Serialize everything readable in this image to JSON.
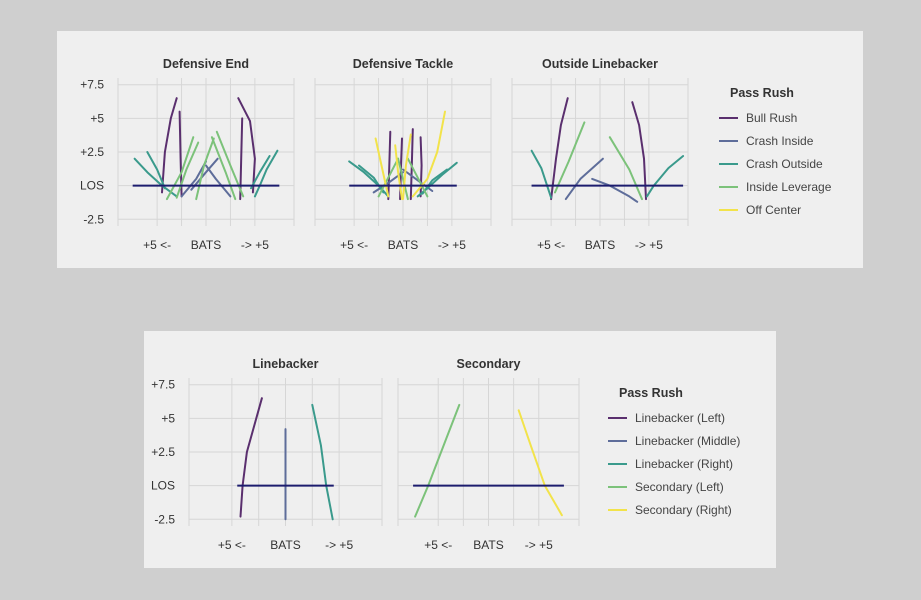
{
  "colors": {
    "los_line": "#1c1c6e",
    "grid": "#d6d6d6",
    "bull_rush": "#5a2f6e",
    "crash_inside": "#5e6d9a",
    "crash_outside": "#3a9a8c",
    "inside_leverage": "#7cc27a",
    "off_center": "#f2e34a"
  },
  "chart_data": [
    {
      "type": "line",
      "facet": "Defensive End",
      "title": "Defensive End",
      "x_ticks": [
        "+5 <-",
        "BATS",
        "-> +5"
      ],
      "y_ticks": [
        "+7.5",
        "+5",
        "+2.5",
        "LOS",
        "-2.5"
      ],
      "x_range": [
        -9,
        9
      ],
      "y_range": [
        -3,
        8
      ],
      "los_segment": [
        -7.5,
        7.5
      ],
      "series": [
        {
          "name": "Bull Rush",
          "color": "#5a2f6e",
          "lines": [
            [
              [
                -4.5,
                -0.5
              ],
              [
                -4.2,
                2.5
              ],
              [
                -3.6,
                5
              ],
              [
                -3,
                6.5
              ]
            ],
            [
              [
                -2.5,
                -0.8
              ],
              [
                -2.6,
                2
              ],
              [
                -2.7,
                5.5
              ]
            ],
            [
              [
                3.5,
                -1
              ],
              [
                3.6,
                2
              ],
              [
                3.7,
                5
              ]
            ],
            [
              [
                4.8,
                -0.5
              ],
              [
                5,
                2
              ],
              [
                4.5,
                4.8
              ],
              [
                3.3,
                6.5
              ]
            ]
          ]
        },
        {
          "name": "Crash Inside",
          "color": "#5e6d9a",
          "lines": [
            [
              [
                -2.5,
                -0.8
              ],
              [
                -1,
                0.5
              ],
              [
                0,
                1.8
              ]
            ],
            [
              [
                2.5,
                -0.8
              ],
              [
                1,
                0.5
              ],
              [
                0,
                1.5
              ]
            ],
            [
              [
                -1.5,
                -0.3
              ],
              [
                0,
                1
              ],
              [
                1.2,
                2
              ]
            ]
          ]
        },
        {
          "name": "Crash Outside",
          "color": "#3a9a8c",
          "lines": [
            [
              [
                -7.3,
                2
              ],
              [
                -6,
                1
              ],
              [
                -4.5,
                0
              ],
              [
                -3,
                -0.8
              ]
            ],
            [
              [
                -6,
                2.5
              ],
              [
                -5,
                1.2
              ],
              [
                -4.2,
                -0.2
              ]
            ],
            [
              [
                7.3,
                2.6
              ],
              [
                6.2,
                1.2
              ],
              [
                5.5,
                0
              ],
              [
                5,
                -0.8
              ]
            ],
            [
              [
                6.5,
                2.2
              ],
              [
                5.5,
                1
              ],
              [
                4.6,
                -0.2
              ]
            ]
          ]
        },
        {
          "name": "Inside Leverage",
          "color": "#7cc27a",
          "lines": [
            [
              [
                -4,
                -1
              ],
              [
                -2.5,
                1
              ],
              [
                -1.3,
                3.6
              ]
            ],
            [
              [
                -3,
                -0.9
              ],
              [
                -2,
                1.2
              ],
              [
                -0.8,
                3.2
              ]
            ],
            [
              [
                3.8,
                -0.8
              ],
              [
                2.5,
                1.5
              ],
              [
                1.1,
                4
              ]
            ],
            [
              [
                3,
                -1
              ],
              [
                2,
                1
              ],
              [
                0.6,
                3.6
              ]
            ],
            [
              [
                -1,
                -1
              ],
              [
                -0.2,
                1.5
              ],
              [
                0.8,
                3.5
              ]
            ]
          ]
        },
        {
          "name": "Off Center",
          "color": "#f2e34a",
          "lines": []
        }
      ]
    },
    {
      "type": "line",
      "facet": "Defensive Tackle",
      "title": "Defensive Tackle",
      "x_ticks": [
        "+5 <-",
        "BATS",
        "-> +5"
      ],
      "y_ticks": [
        "+7.5",
        "+5",
        "+2.5",
        "LOS",
        "-2.5"
      ],
      "x_range": [
        -9,
        9
      ],
      "y_range": [
        -3,
        8
      ],
      "los_segment": [
        -5.5,
        5.5
      ],
      "series": [
        {
          "name": "Bull Rush",
          "color": "#5a2f6e",
          "lines": [
            [
              [
                -1.5,
                -1
              ],
              [
                -1.4,
                1.5
              ],
              [
                -1.3,
                4
              ]
            ],
            [
              [
                -0.3,
                -1
              ],
              [
                -0.2,
                1.5
              ],
              [
                -0.1,
                3.5
              ]
            ],
            [
              [
                0.8,
                -1
              ],
              [
                0.9,
                1.5
              ],
              [
                1,
                4.2
              ]
            ],
            [
              [
                1.8,
                -0.8
              ],
              [
                1.9,
                1.5
              ],
              [
                1.8,
                3.6
              ]
            ]
          ]
        },
        {
          "name": "Crash Inside",
          "color": "#5e6d9a",
          "lines": [
            [
              [
                -3,
                -0.5
              ],
              [
                -1.5,
                0.2
              ],
              [
                0,
                1
              ]
            ],
            [
              [
                3,
                -0.4
              ],
              [
                1.5,
                0.4
              ],
              [
                0,
                1.2
              ]
            ]
          ]
        },
        {
          "name": "Crash Outside",
          "color": "#3a9a8c",
          "lines": [
            [
              [
                -5.5,
                1.8
              ],
              [
                -4,
                1
              ],
              [
                -2.5,
                0
              ],
              [
                -1.5,
                -0.8
              ]
            ],
            [
              [
                -4.5,
                1.5
              ],
              [
                -3,
                0.6
              ],
              [
                -2,
                -0.5
              ]
            ],
            [
              [
                5.5,
                1.7
              ],
              [
                4,
                0.8
              ],
              [
                2.5,
                -0.2
              ],
              [
                1.5,
                -0.8
              ]
            ],
            [
              [
                4.5,
                1.2
              ],
              [
                3,
                0.4
              ],
              [
                2,
                -0.6
              ]
            ]
          ]
        },
        {
          "name": "Inside Leverage",
          "color": "#7cc27a",
          "lines": [
            [
              [
                -2.5,
                -0.8
              ],
              [
                -1.5,
                0.6
              ],
              [
                -0.5,
                2
              ]
            ],
            [
              [
                2.5,
                -0.8
              ],
              [
                1.5,
                0.6
              ],
              [
                0.5,
                2
              ]
            ],
            [
              [
                0.5,
                -1
              ],
              [
                0,
                0.5
              ],
              [
                -0.5,
                2
              ]
            ]
          ]
        },
        {
          "name": "Off Center",
          "color": "#f2e34a",
          "lines": [
            [
              [
                -2.8,
                3.5
              ],
              [
                -2.2,
                1.5
              ],
              [
                -1.5,
                -0.8
              ]
            ],
            [
              [
                -0.8,
                3
              ],
              [
                -0.5,
                1
              ],
              [
                -0.1,
                -1
              ]
            ],
            [
              [
                0.8,
                3.8
              ],
              [
                0.3,
                1.5
              ],
              [
                0,
                -1
              ]
            ],
            [
              [
                4.3,
                5.5
              ],
              [
                3.5,
                2.5
              ],
              [
                2.5,
                0.5
              ],
              [
                1,
                -0.8
              ]
            ]
          ]
        }
      ]
    },
    {
      "type": "line",
      "facet": "Outside Linebacker",
      "title": "Outside Linebacker",
      "x_ticks": [
        "+5 <-",
        "BATS",
        "-> +5"
      ],
      "y_ticks": [
        "+7.5",
        "+5",
        "+2.5",
        "LOS",
        "-2.5"
      ],
      "x_range": [
        -9,
        9
      ],
      "y_range": [
        -3,
        8
      ],
      "los_segment": [
        -7,
        8.5
      ],
      "series": [
        {
          "name": "Bull Rush",
          "color": "#5a2f6e",
          "lines": [
            [
              [
                -5,
                -1
              ],
              [
                -4.5,
                2
              ],
              [
                -4,
                4.5
              ],
              [
                -3.3,
                6.5
              ]
            ],
            [
              [
                4.7,
                -1
              ],
              [
                4.5,
                2
              ],
              [
                4,
                4.5
              ],
              [
                3.3,
                6.2
              ]
            ]
          ]
        },
        {
          "name": "Crash Inside",
          "color": "#5e6d9a",
          "lines": [
            [
              [
                -3.5,
                -1
              ],
              [
                -2,
                0.5
              ],
              [
                0.3,
                2
              ]
            ],
            [
              [
                -0.8,
                0.5
              ],
              [
                1,
                0
              ],
              [
                3,
                -0.8
              ],
              [
                3.8,
                -1.2
              ]
            ]
          ]
        },
        {
          "name": "Crash Outside",
          "color": "#3a9a8c",
          "lines": [
            [
              [
                -7,
                2.6
              ],
              [
                -6,
                1.3
              ],
              [
                -5,
                -0.9
              ]
            ],
            [
              [
                8.5,
                2.2
              ],
              [
                7,
                1.3
              ],
              [
                5.5,
                0
              ],
              [
                4.8,
                -0.8
              ]
            ]
          ]
        },
        {
          "name": "Inside Leverage",
          "color": "#7cc27a",
          "lines": [
            [
              [
                -4.6,
                -0.5
              ],
              [
                -3.2,
                1.8
              ],
              [
                -1.6,
                4.7
              ]
            ],
            [
              [
                4.3,
                -1
              ],
              [
                3,
                1.2
              ],
              [
                1,
                3.6
              ]
            ]
          ]
        },
        {
          "name": "Off Center",
          "color": "#f2e34a",
          "lines": []
        }
      ]
    },
    {
      "type": "line",
      "facet": "Linebacker",
      "title": "Linebacker",
      "x_ticks": [
        "+5 <-",
        "BATS",
        "-> +5"
      ],
      "y_ticks": [
        "+7.5",
        "+5",
        "+2.5",
        "LOS",
        "-2.5"
      ],
      "x_range": [
        -9,
        9
      ],
      "y_range": [
        -3,
        8
      ],
      "los_segment": [
        -4.5,
        4.5
      ],
      "series": [
        {
          "name": "Linebacker (Left)",
          "color": "#5a2f6e",
          "lines": [
            [
              [
                -4.2,
                -2.3
              ],
              [
                -4,
                0
              ],
              [
                -3.6,
                2.5
              ],
              [
                -2.8,
                4.8
              ],
              [
                -2.2,
                6.5
              ]
            ]
          ]
        },
        {
          "name": "Linebacker (Middle)",
          "color": "#5e6d9a",
          "lines": [
            [
              [
                0,
                -2.5
              ],
              [
                0,
                4.2
              ]
            ]
          ]
        },
        {
          "name": "Linebacker (Right)",
          "color": "#3a9a8c",
          "lines": [
            [
              [
                2.5,
                6
              ],
              [
                3.3,
                3
              ],
              [
                3.8,
                0
              ],
              [
                4.4,
                -2.5
              ]
            ]
          ]
        },
        {
          "name": "Secondary (Left)",
          "color": "#7cc27a",
          "lines": []
        },
        {
          "name": "Secondary (Right)",
          "color": "#f2e34a",
          "lines": []
        }
      ]
    },
    {
      "type": "line",
      "facet": "Secondary",
      "title": "Secondary",
      "x_ticks": [
        "+5 <-",
        "BATS",
        "-> +5"
      ],
      "y_ticks": [
        "+7.5",
        "+5",
        "+2.5",
        "LOS",
        "-2.5"
      ],
      "x_range": [
        -9,
        9
      ],
      "y_range": [
        -3,
        8
      ],
      "los_segment": [
        -7.5,
        7.5
      ],
      "series": [
        {
          "name": "Linebacker (Left)",
          "color": "#5a2f6e",
          "lines": []
        },
        {
          "name": "Linebacker (Middle)",
          "color": "#5e6d9a",
          "lines": []
        },
        {
          "name": "Linebacker (Right)",
          "color": "#3a9a8c",
          "lines": []
        },
        {
          "name": "Secondary (Left)",
          "color": "#7cc27a",
          "lines": [
            [
              [
                -7.3,
                -2.3
              ],
              [
                -6,
                0
              ],
              [
                -4.2,
                3.5
              ],
              [
                -2.9,
                6
              ]
            ]
          ]
        },
        {
          "name": "Secondary (Right)",
          "color": "#f2e34a",
          "lines": [
            [
              [
                3,
                5.6
              ],
              [
                4.2,
                3
              ],
              [
                5.6,
                0
              ],
              [
                7.3,
                -2.2
              ]
            ]
          ]
        }
      ]
    }
  ],
  "legends": [
    {
      "title": "Pass Rush",
      "items": [
        {
          "label": "Bull Rush",
          "color": "#5a2f6e"
        },
        {
          "label": "Crash Inside",
          "color": "#5e6d9a"
        },
        {
          "label": "Crash Outside",
          "color": "#3a9a8c"
        },
        {
          "label": "Inside Leverage",
          "color": "#7cc27a"
        },
        {
          "label": "Off Center",
          "color": "#f2e34a"
        }
      ]
    },
    {
      "title": "Pass Rush",
      "items": [
        {
          "label": "Linebacker (Left)",
          "color": "#5a2f6e"
        },
        {
          "label": "Linebacker (Middle)",
          "color": "#5e6d9a"
        },
        {
          "label": "Linebacker (Right)",
          "color": "#3a9a8c"
        },
        {
          "label": "Secondary (Left)",
          "color": "#7cc27a"
        },
        {
          "label": "Secondary (Right)",
          "color": "#f2e34a"
        }
      ]
    }
  ]
}
